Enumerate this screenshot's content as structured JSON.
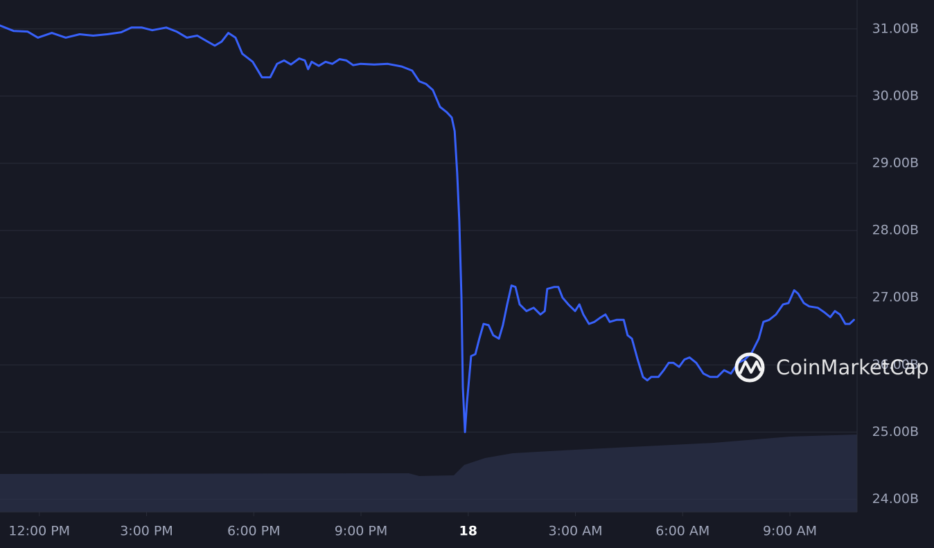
{
  "chart_data": {
    "type": "line",
    "watermark": "CoinMarketCap",
    "x": [
      10.9,
      11.28,
      11.67,
      11.96,
      12.35,
      12.74,
      13.13,
      13.51,
      13.9,
      14.29,
      14.58,
      14.87,
      15.16,
      15.55,
      15.84,
      16.13,
      16.42,
      16.71,
      16.91,
      17.1,
      17.29,
      17.49,
      17.68,
      17.97,
      18.23,
      18.46,
      18.65,
      18.85,
      19.04,
      19.27,
      19.43,
      19.52,
      19.62,
      19.82,
      20.01,
      20.2,
      20.4,
      20.59,
      20.78,
      20.98,
      21.37,
      21.75,
      22.14,
      22.43,
      22.63,
      22.82,
      23.01,
      23.21,
      23.4,
      23.54,
      23.62,
      23.69,
      23.75,
      23.81,
      23.85,
      23.91,
      23.96,
      24.08,
      24.2,
      24.31,
      24.43,
      24.57,
      24.7,
      24.86,
      24.97,
      25.09,
      25.21,
      25.32,
      25.44,
      25.63,
      25.83,
      26.02,
      26.14,
      26.21,
      26.41,
      26.52,
      26.64,
      26.8,
      26.99,
      27.11,
      27.22,
      27.38,
      27.53,
      27.69,
      27.84,
      27.96,
      28.15,
      28.35,
      28.46,
      28.58,
      28.74,
      28.89,
      29.01,
      29.12,
      29.32,
      29.47,
      29.61,
      29.74,
      29.9,
      30.05,
      30.19,
      30.38,
      30.58,
      30.77,
      30.97,
      31.16,
      31.35,
      31.55,
      31.74,
      31.93,
      32.13,
      32.26,
      32.42,
      32.61,
      32.81,
      32.96,
      33.12,
      33.23,
      33.39,
      33.54,
      33.78,
      33.97,
      34.13,
      34.26,
      34.4,
      34.55,
      34.67,
      34.79
    ],
    "series": [
      {
        "color": "#3861fb",
        "values": [
          31.05,
          30.97,
          30.96,
          30.87,
          30.94,
          30.87,
          30.92,
          30.9,
          30.92,
          30.95,
          31.02,
          31.02,
          30.98,
          31.02,
          30.96,
          30.87,
          30.9,
          30.81,
          30.75,
          30.81,
          30.94,
          30.87,
          30.63,
          30.51,
          30.28,
          30.28,
          30.48,
          30.53,
          30.47,
          30.56,
          30.53,
          30.4,
          30.51,
          30.45,
          30.51,
          30.48,
          30.55,
          30.53,
          30.46,
          30.48,
          30.47,
          30.48,
          30.44,
          30.38,
          30.22,
          30.18,
          30.09,
          29.84,
          29.76,
          29.68,
          29.48,
          28.86,
          28.14,
          27.0,
          25.67,
          25.0,
          25.41,
          26.13,
          26.16,
          26.39,
          26.61,
          26.59,
          26.44,
          26.39,
          26.59,
          26.9,
          27.18,
          27.16,
          26.9,
          26.8,
          26.85,
          26.75,
          26.8,
          27.13,
          27.16,
          27.16,
          27.0,
          26.9,
          26.8,
          26.9,
          26.75,
          26.61,
          26.64,
          26.7,
          26.75,
          26.64,
          26.67,
          26.67,
          26.44,
          26.39,
          26.08,
          25.82,
          25.77,
          25.82,
          25.82,
          25.92,
          26.03,
          26.03,
          25.97,
          26.08,
          26.11,
          26.03,
          25.87,
          25.82,
          25.82,
          25.92,
          25.87,
          26.03,
          26.08,
          26.18,
          26.39,
          26.64,
          26.67,
          26.75,
          26.9,
          26.92,
          27.11,
          27.06,
          26.92,
          26.87,
          26.85,
          26.78,
          26.71,
          26.8,
          26.75,
          26.61,
          26.61,
          26.67
        ]
      }
    ],
    "xlim": [
      10.9,
      34.88
    ],
    "xticks": [
      {
        "value": 12,
        "label": "12:00 PM"
      },
      {
        "value": 15,
        "label": "3:00 PM"
      },
      {
        "value": 18,
        "label": "6:00 PM"
      },
      {
        "value": 21,
        "label": "9:00 PM"
      },
      {
        "value": 24,
        "label": "18"
      },
      {
        "value": 27,
        "label": "3:00 AM"
      },
      {
        "value": 30,
        "label": "6:00 AM"
      },
      {
        "value": 33,
        "label": "9:00 AM"
      }
    ],
    "ylim": [
      23.81,
      31.43
    ],
    "yticks": [
      {
        "value": 24,
        "label": "24.00B"
      },
      {
        "value": 25,
        "label": "25.00B"
      },
      {
        "value": 26,
        "label": "26.00B"
      },
      {
        "value": 27,
        "label": "27.00B"
      },
      {
        "value": 28,
        "label": "28.00B"
      },
      {
        "value": 29,
        "label": "29.00B"
      },
      {
        "value": 30,
        "label": "30.00B"
      },
      {
        "value": 31,
        "label": "31.00B"
      }
    ],
    "grid": true
  }
}
